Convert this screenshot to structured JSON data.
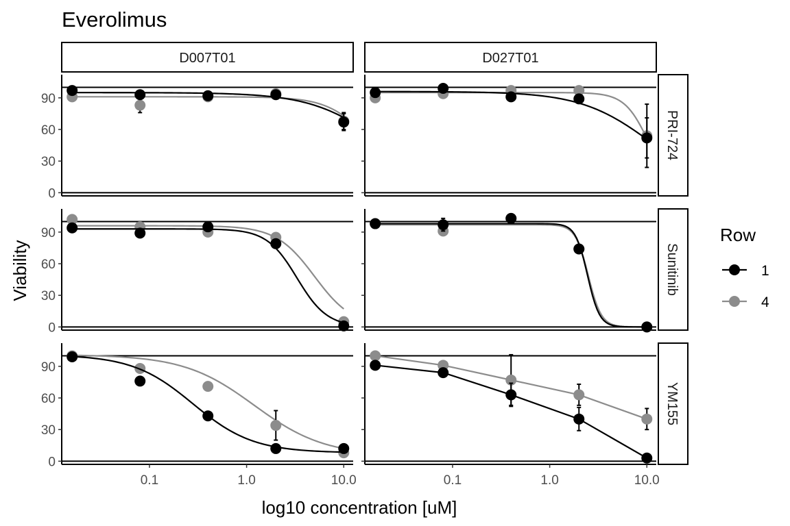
{
  "colors": {
    "row1": "#000000",
    "row4": "#8c8c8c"
  },
  "chart_data": {
    "type": "scatter",
    "title": "Everolimus",
    "xlabel": "log10 concentration [uM]",
    "ylabel": "Viability",
    "x_scale": "log",
    "x_ticks": [
      "0.1",
      "1.0",
      "10.0"
    ],
    "y_ticks": [
      "0",
      "30",
      "60",
      "90"
    ],
    "xlim": [
      0.0125,
      12.5
    ],
    "ylim": [
      -3,
      112
    ],
    "reference_line": 100,
    "grid": false,
    "legend": {
      "title": "Row",
      "position": "right",
      "entries": [
        "1",
        "4"
      ]
    },
    "columns": [
      "D007T01",
      "D027T01"
    ],
    "rows": [
      "PRI-724",
      "Sunitinib",
      "YM155"
    ],
    "panels": [
      {
        "column": "D007T01",
        "row": "PRI-724",
        "series": [
          {
            "name": "1",
            "x": [
              0.016,
              0.08,
              0.4,
              2,
              10
            ],
            "y": [
              97,
              93,
              92,
              93,
              67
            ],
            "err": [
              1,
              2,
              1,
              2,
              8
            ],
            "curve": {
              "top": 95,
              "bottom": 0,
              "ec50": 25,
              "hill": 1.2
            }
          },
          {
            "name": "4",
            "x": [
              0.016,
              0.08,
              0.4,
              2,
              10
            ],
            "y": [
              91,
              83,
              91,
              94,
              68
            ],
            "err": [
              2,
              7,
              3,
              4,
              8
            ],
            "curve": {
              "top": 91,
              "bottom": 0,
              "ec50": 20,
              "hill": 2
            }
          }
        ]
      },
      {
        "column": "D027T01",
        "row": "PRI-724",
        "series": [
          {
            "name": "1",
            "x": [
              0.016,
              0.08,
              0.4,
              2,
              10
            ],
            "y": [
              95,
              99,
              91,
              89,
              52
            ],
            "err": [
              2,
              1,
              2,
              4,
              19
            ],
            "curve": {
              "top": 96,
              "bottom": 0,
              "ec50": 11,
              "hill": 1.2
            }
          },
          {
            "name": "4",
            "x": [
              0.016,
              0.08,
              0.4,
              2,
              10
            ],
            "y": [
              90,
              94,
              97,
              97,
              54
            ],
            "err": [
              4,
              3,
              2,
              2,
              30
            ],
            "curve": {
              "top": 95,
              "bottom": 0,
              "ec50": 10.5,
              "hill": 3.5
            }
          }
        ]
      },
      {
        "column": "D007T01",
        "row": "Sunitinib",
        "series": [
          {
            "name": "1",
            "x": [
              0.016,
              0.08,
              0.4,
              2,
              10
            ],
            "y": [
              94,
              89,
              95,
              79,
              1
            ],
            "err": [
              2,
              2,
              2,
              2,
              1
            ],
            "curve": {
              "top": 93,
              "bottom": 0,
              "ec50": 3.3,
              "hill": 2.8
            }
          },
          {
            "name": "4",
            "x": [
              0.016,
              0.08,
              0.4,
              2,
              10
            ],
            "y": [
              102,
              95,
              90,
              85,
              5
            ],
            "err": [
              3,
              3,
              4,
              4,
              2
            ],
            "curve": {
              "top": 96,
              "bottom": 0,
              "ec50": 5,
              "hill": 2.2
            }
          }
        ]
      },
      {
        "column": "D027T01",
        "row": "Sunitinib",
        "series": [
          {
            "name": "1",
            "x": [
              0.016,
              0.08,
              0.4,
              2,
              10
            ],
            "y": [
              98,
              97,
              103,
              74,
              0
            ],
            "err": [
              2,
              6,
              3,
              2,
              1
            ],
            "curve": {
              "top": 98,
              "bottom": 0,
              "ec50": 2.45,
              "hill": 7
            }
          },
          {
            "name": "4",
            "x": [
              0.016,
              0.08,
              0.4,
              2,
              10
            ],
            "y": [
              98,
              91,
              103,
              74,
              0
            ],
            "err": [
              2,
              3,
              2,
              2,
              1
            ],
            "curve": {
              "top": 97,
              "bottom": 0,
              "ec50": 2.5,
              "hill": 6.5
            }
          }
        ]
      },
      {
        "column": "D007T01",
        "row": "YM155",
        "series": [
          {
            "name": "1",
            "x": [
              0.016,
              0.08,
              0.4,
              2,
              10
            ],
            "y": [
              99,
              76,
              43,
              12,
              12
            ],
            "err": [
              4,
              2,
              2,
              2,
              2
            ],
            "curve": {
              "top": 101,
              "bottom": 8,
              "ec50": 0.28,
              "hill": 1.4
            }
          },
          {
            "name": "4",
            "x": [
              0.016,
              0.08,
              0.4,
              2,
              10
            ],
            "y": [
              100,
              88,
              71,
              34,
              8
            ],
            "err": [
              4,
              4,
              2,
              14,
              2
            ],
            "curve": {
              "top": 101,
              "bottom": 5,
              "ec50": 1.2,
              "hill": 1.2
            }
          }
        ]
      },
      {
        "column": "D027T01",
        "row": "YM155",
        "series": [
          {
            "name": "1",
            "x": [
              0.016,
              0.08,
              0.4,
              2,
              10
            ],
            "y": [
              91,
              84,
              63,
              40,
              3
            ],
            "err": [
              2,
              2,
              11,
              11,
              2
            ],
            "line": true
          },
          {
            "name": "4",
            "x": [
              0.016,
              0.08,
              0.4,
              2,
              10
            ],
            "y": [
              100,
              91,
              77,
              63,
              40
            ],
            "err": [
              2,
              2,
              24,
              10,
              10
            ],
            "line": true
          }
        ]
      }
    ]
  }
}
